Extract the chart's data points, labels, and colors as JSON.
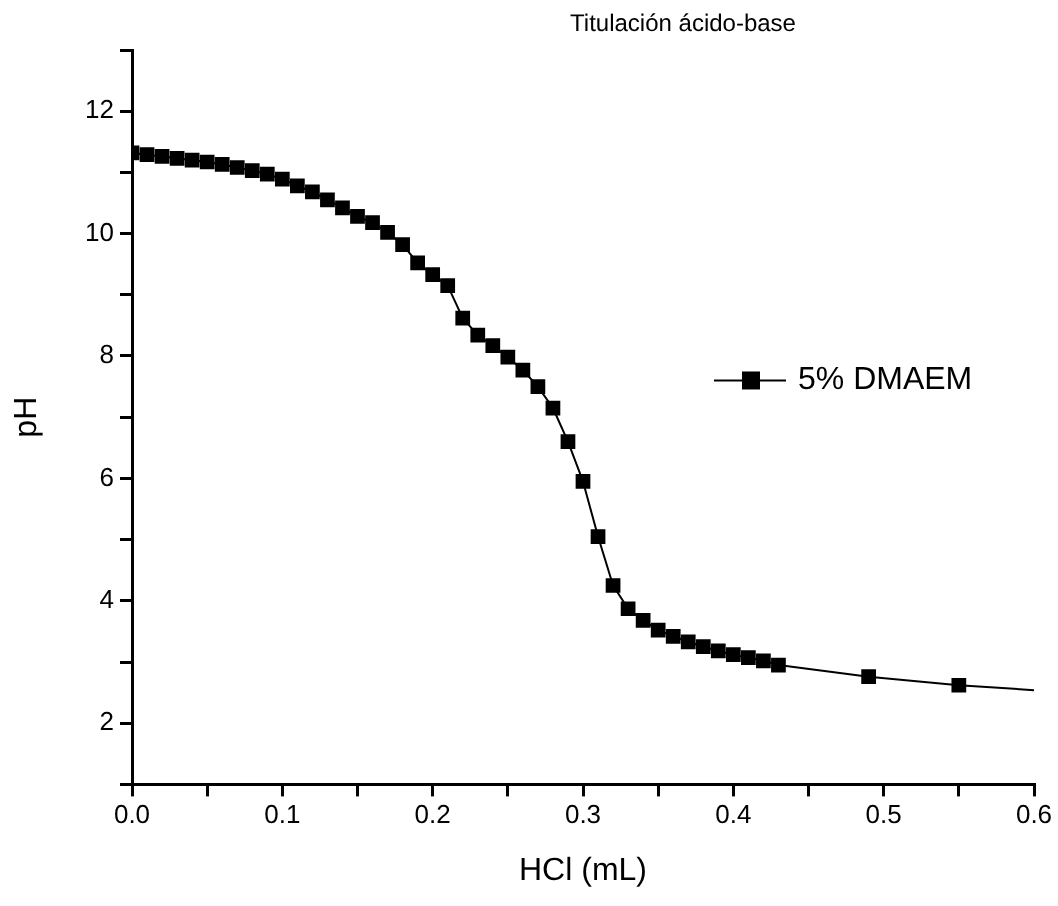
{
  "chart_data": {
    "type": "line",
    "title": "Titulación ácido-base",
    "xlabel": "HCl (mL)",
    "ylabel": "pH",
    "xlim": [
      0,
      0.6
    ],
    "xticks": [
      {
        "value": 0,
        "label": "0.0"
      },
      {
        "value": 0.05,
        "label": null
      },
      0.1,
      {
        "value": 0.15,
        "label": null
      },
      0.2,
      {
        "value": 0.25,
        "label": null
      },
      0.3,
      {
        "value": 0.35,
        "label": null
      },
      0.4,
      {
        "value": 0.45,
        "label": null
      },
      0.5,
      {
        "value": 0.55,
        "label": null
      },
      0.6
    ],
    "ylim": [
      1,
      13
    ],
    "yticks": [
      {
        "value": 1,
        "label": null
      },
      2,
      {
        "value": 3,
        "label": null
      },
      4,
      {
        "value": 5,
        "label": null
      },
      6,
      {
        "value": 7,
        "label": null
      },
      8,
      {
        "value": 9,
        "label": null
      },
      10,
      {
        "value": 11,
        "label": null
      },
      12,
      {
        "value": 13,
        "label": null
      }
    ],
    "grid": false,
    "legend": "right",
    "series": [
      {
        "name": "5% DMAEM",
        "color": "#000000",
        "marker": "square",
        "x": [
          0,
          0.01,
          0.02,
          0.03,
          0.04,
          0.05,
          0.06,
          0.07,
          0.08,
          0.09,
          0.1,
          0.11,
          0.12,
          0.13,
          0.14,
          0.15,
          0.16,
          0.17,
          0.18,
          0.19,
          0.2,
          0.21,
          0.22,
          0.23,
          0.24,
          0.25,
          0.26,
          0.27,
          0.28,
          0.29,
          0.3,
          0.31,
          0.32,
          0.33,
          0.34,
          0.35,
          0.36,
          0.37,
          0.38,
          0.39,
          0.4,
          0.41,
          0.42,
          0.43,
          0.49,
          0.55
        ],
        "values": [
          11.32,
          11.29,
          11.26,
          11.23,
          11.2,
          11.17,
          11.13,
          11.08,
          11.03,
          10.97,
          10.89,
          10.78,
          10.68,
          10.55,
          10.42,
          10.28,
          10.18,
          10.02,
          9.82,
          9.52,
          9.33,
          9.15,
          8.62,
          8.34,
          8.17,
          7.98,
          7.77,
          7.5,
          7.15,
          6.6,
          5.95,
          5.05,
          4.25,
          3.87,
          3.68,
          3.52,
          3.42,
          3.33,
          3.25,
          3.18,
          3.12,
          3.07,
          3.02,
          2.95,
          2.76,
          2.62
        ]
      },
      {
        "color": "#000000",
        "marker": "none",
        "x": [
          0.55,
          0.6
        ],
        "values": [
          2.62,
          2.54
        ]
      }
    ]
  }
}
